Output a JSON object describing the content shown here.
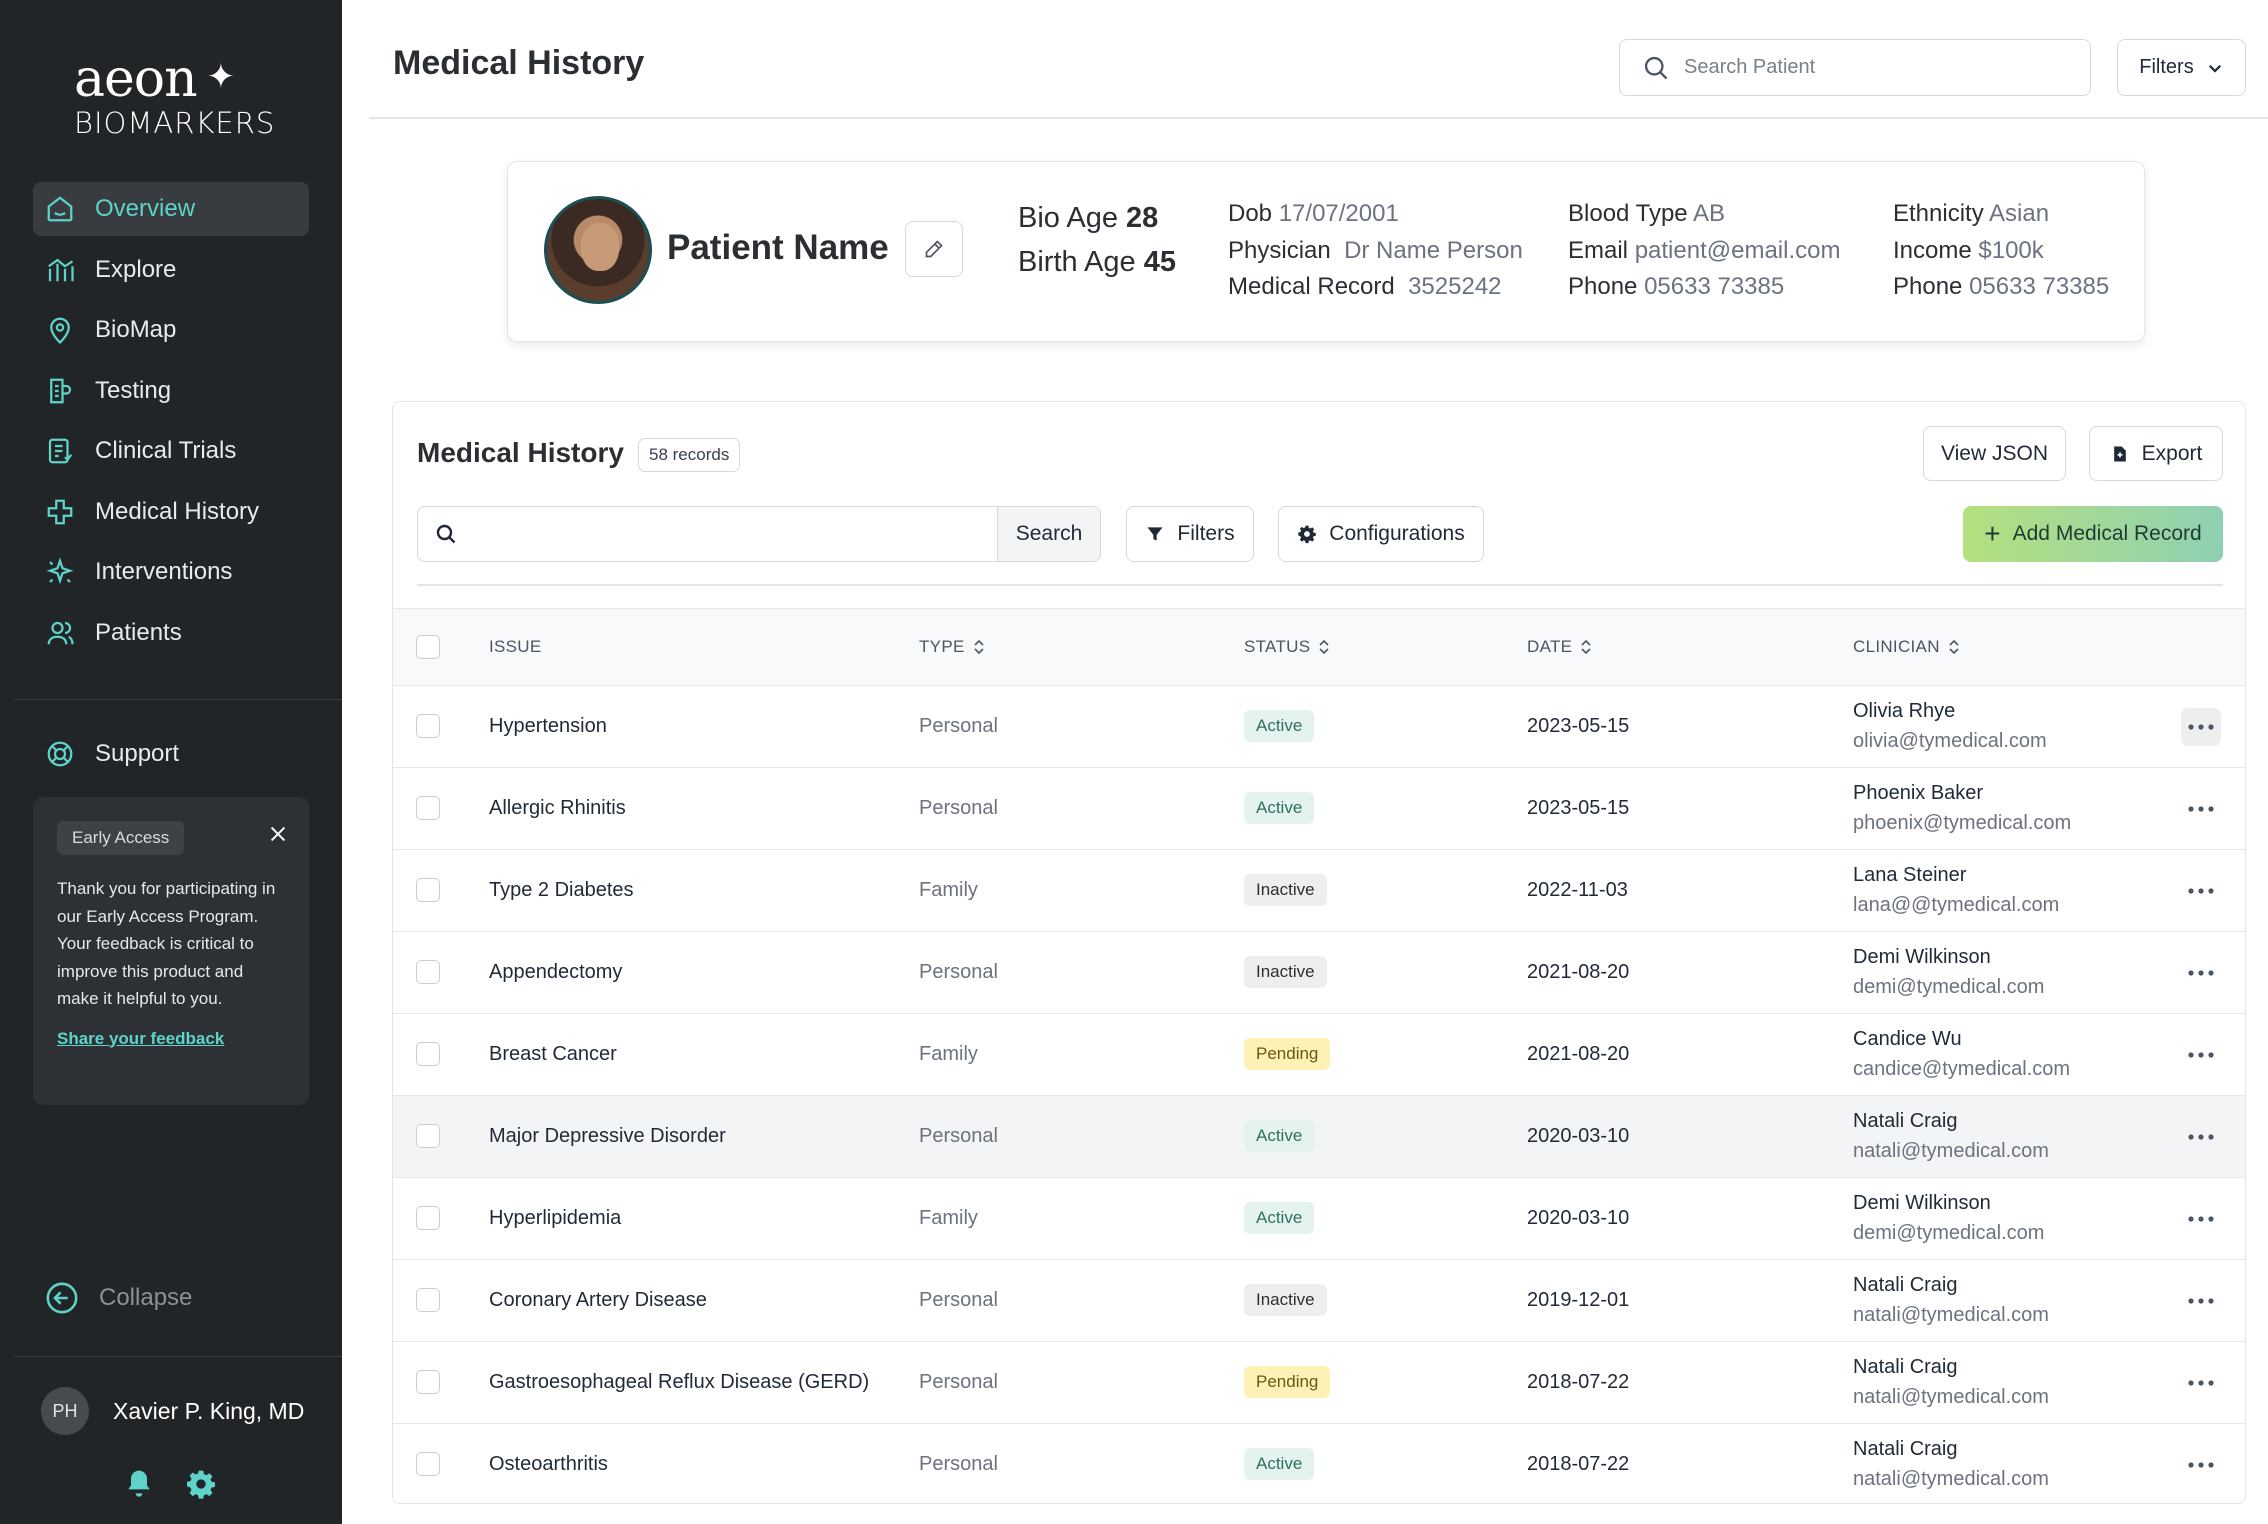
{
  "brand": {
    "name": "aeon",
    "sub": "BIOMARKERS"
  },
  "sidebar": {
    "items": [
      {
        "label": "Overview",
        "icon": "home-icon",
        "active": true
      },
      {
        "label": "Explore",
        "icon": "explore-icon"
      },
      {
        "label": "BioMap",
        "icon": "map-pin-icon"
      },
      {
        "label": "Testing",
        "icon": "testing-icon"
      },
      {
        "label": "Clinical Trials",
        "icon": "clipboard-icon"
      },
      {
        "label": "Medical History",
        "icon": "medical-cross-icon"
      },
      {
        "label": "Interventions",
        "icon": "sparkle-icon"
      },
      {
        "label": "Patients",
        "icon": "users-icon"
      }
    ],
    "support": "Support",
    "early_access": {
      "tag": "Early Access",
      "message": "Thank you for participating in our Early Access Program. Your feedback is critical to improve this product and make it helpful to you.",
      "link": "Share your feedback"
    },
    "collapse": "Collapse",
    "user": {
      "initials": "PH",
      "name": "Xavier P. King, MD"
    }
  },
  "header": {
    "title": "Medical History",
    "search_placeholder": "Search Patient",
    "filters_label": "Filters"
  },
  "patient": {
    "name": "Patient Name",
    "bio_age_label": "Bio Age",
    "bio_age": "28",
    "birth_age_label": "Birth Age",
    "birth_age": "45",
    "dob_label": "Dob",
    "dob": "17/07/2001",
    "physician_label": "Physician",
    "physician": "Dr Name Person",
    "record_label": "Medical Record",
    "record": "3525242",
    "blood_label": "Blood Type",
    "blood": "AB",
    "email_label": "Email",
    "email": "patient@email.com",
    "phone_label": "Phone",
    "phone": "05633 73385",
    "ethnicity_label": "Ethnicity",
    "ethnicity": "Asian",
    "income_label": "Income",
    "income": "$100k",
    "phone2_label": "Phone",
    "phone2": "05633 73385"
  },
  "records": {
    "title": "Medical History",
    "count": "58 records",
    "view_json": "View JSON",
    "export": "Export",
    "search_btn": "Search",
    "filters": "Filters",
    "configurations": "Configurations",
    "add": "Add Medical Record",
    "columns": [
      "ISSUE",
      "TYPE",
      "STATUS",
      "DATE",
      "CLINICIAN"
    ],
    "rows": [
      {
        "issue": "Hypertension",
        "type": "Personal",
        "status": "Active",
        "date": "2023-05-15",
        "clinician": "Olivia Rhye",
        "email": "olivia@tymedical.com"
      },
      {
        "issue": "Allergic Rhinitis",
        "type": "Personal",
        "status": "Active",
        "date": "2023-05-15",
        "clinician": "Phoenix Baker",
        "email": "phoenix@tymedical.com"
      },
      {
        "issue": "Type 2 Diabetes",
        "type": "Family",
        "status": "Inactive",
        "date": "2022-11-03",
        "clinician": "Lana Steiner",
        "email": "lana@@tymedical.com"
      },
      {
        "issue": "Appendectomy",
        "type": "Personal",
        "status": "Inactive",
        "date": "2021-08-20",
        "clinician": "Demi Wilkinson",
        "email": "demi@tymedical.com"
      },
      {
        "issue": "Breast Cancer",
        "type": "Family",
        "status": "Pending",
        "date": "2021-08-20",
        "clinician": "Candice Wu",
        "email": "candice@tymedical.com"
      },
      {
        "issue": "Major Depressive Disorder",
        "type": "Personal",
        "status": "Active",
        "date": "2020-03-10",
        "clinician": "Natali Craig",
        "email": "natali@tymedical.com"
      },
      {
        "issue": "Hyperlipidemia",
        "type": "Family",
        "status": "Active",
        "date": "2020-03-10",
        "clinician": "Demi Wilkinson",
        "email": "demi@tymedical.com"
      },
      {
        "issue": "Coronary Artery Disease",
        "type": "Personal",
        "status": "Inactive",
        "date": "2019-12-01",
        "clinician": "Natali Craig",
        "email": "natali@tymedical.com"
      },
      {
        "issue": "Gastroesophageal Reflux Disease (GERD)",
        "type": "Personal",
        "status": "Pending",
        "date": "2018-07-22",
        "clinician": "Natali Craig",
        "email": "natali@tymedical.com"
      },
      {
        "issue": "Osteoarthritis",
        "type": "Personal",
        "status": "Active",
        "date": "2018-07-22",
        "clinician": "Natali Craig",
        "email": "natali@tymedical.com"
      }
    ]
  },
  "colors": {
    "accent": "#5dd3c9",
    "sidebar_bg": "#222528",
    "add_button": "#a3d98f"
  }
}
